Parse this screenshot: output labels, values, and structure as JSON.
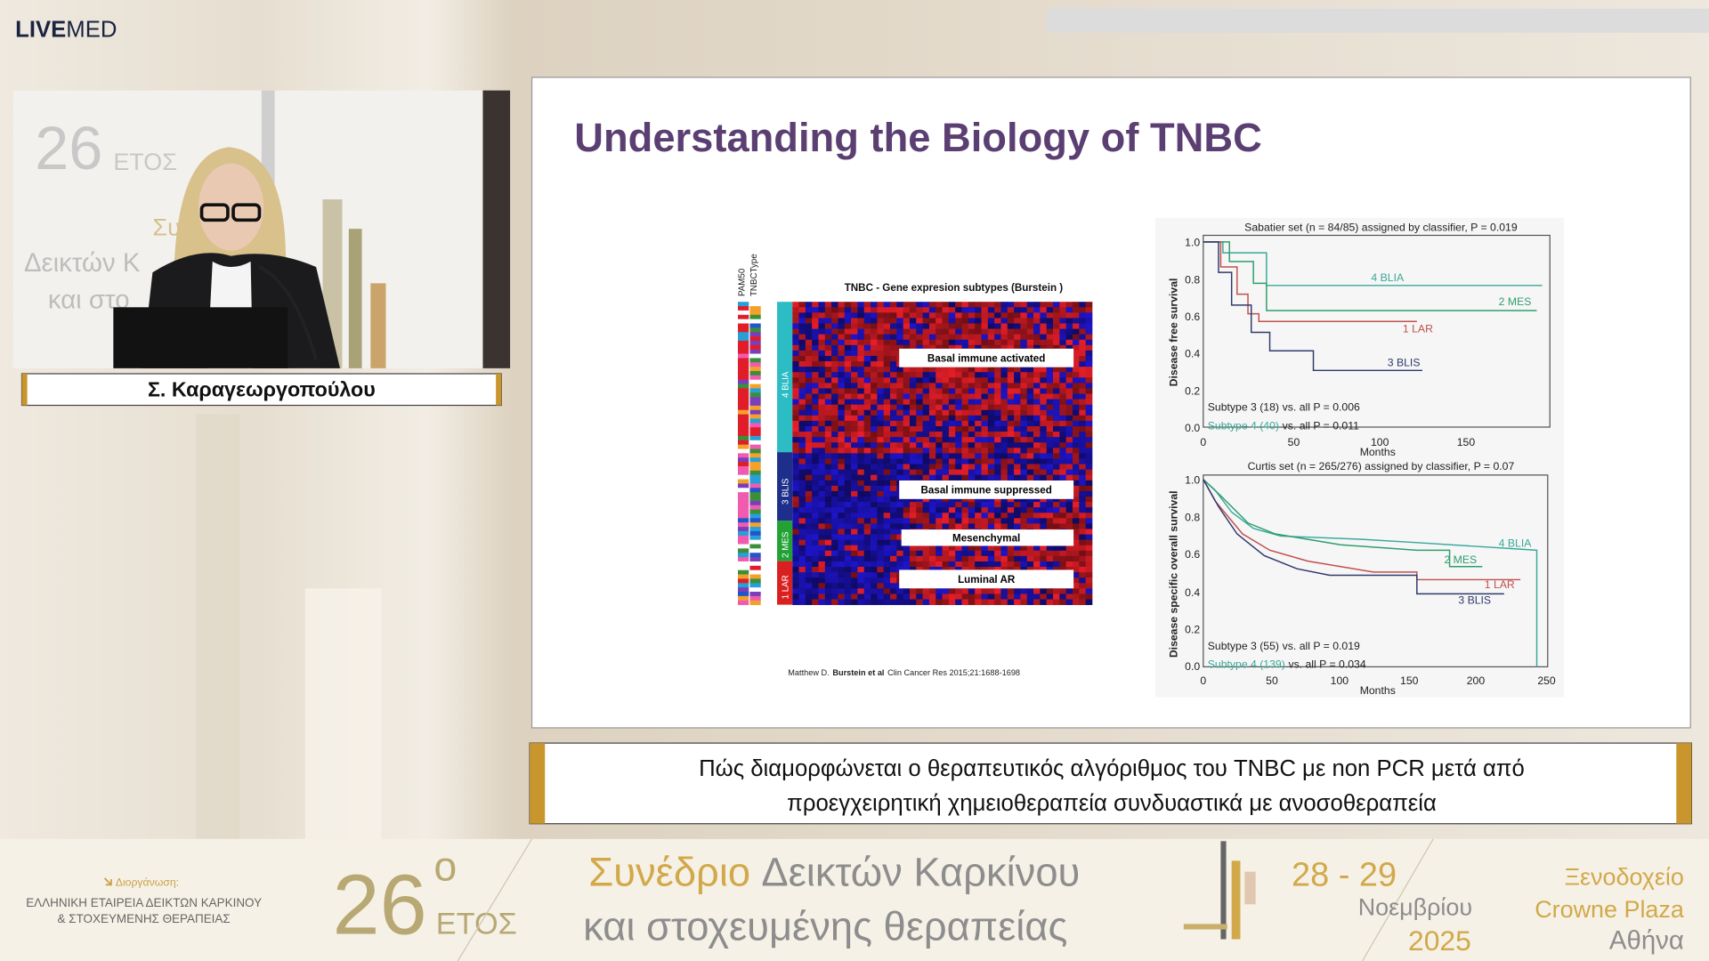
{
  "header": {
    "logo_bold": "LIVE",
    "logo_light": "MED"
  },
  "video": {
    "backdrop_text": [
      "26",
      "ΕΤΟΣ",
      "Συ",
      "Δεικτών Κ",
      "και στο"
    ]
  },
  "speaker": {
    "name": "Σ. Καραγεωργοπούλου"
  },
  "slide": {
    "title": "Understanding the Biology of TNBC",
    "heatmap": {
      "title": "TNBC - Gene expresion subtypes (Burstein )",
      "column_labels": [
        "PAM50",
        "TNBCType"
      ],
      "subtypes": [
        "4 BLIA",
        "3 BLIS",
        "2 MES",
        "1 LAR"
      ],
      "boxes": [
        "Basal immune activated",
        "Basal immune suppressed",
        "Mesenchymal",
        "Luminal AR"
      ]
    },
    "citation": {
      "author": "Matthew D.",
      "bold": "Burstein et al",
      "source": "Clin Cancer Res 2015;21:1688-1698"
    },
    "km_plots": [
      {
        "title": "Sabatier set (n = 84/85) assigned by classifier, P = 0.019",
        "ylabel": "Disease free survival",
        "yticks": [
          "1.0",
          "0.8",
          "0.6",
          "0.4",
          "0.2",
          "0.0"
        ],
        "xticks": [
          "0",
          "50",
          "100",
          "150"
        ],
        "xlabel": "Months",
        "curve_labels": [
          "4 BLIA",
          "2 MES",
          "1 LAR",
          "3 BLIS"
        ],
        "stats": [
          {
            "label": "Subtype 3 (18)",
            "text": "vs. all P = 0.006"
          },
          {
            "label": "Subtype 4 (40)",
            "text": "vs. all P = 0.011"
          }
        ]
      },
      {
        "title": "Curtis set (n = 265/276) assigned by classifier, P = 0.07",
        "ylabel": "Disease specific overall survival",
        "yticks": [
          "1.0",
          "0.8",
          "0.6",
          "0.4",
          "0.2",
          "0.0"
        ],
        "xticks": [
          "0",
          "50",
          "100",
          "150",
          "200",
          "250"
        ],
        "xlabel": "Months",
        "curve_labels": [
          "4 BLIA",
          "2 MES",
          "1 LAR",
          "3 BLIS"
        ],
        "stats": [
          {
            "label": "Subtype 3 (55)",
            "text": "vs. all P = 0.019"
          },
          {
            "label": "Subtype 4 (139)",
            "text": "vs. all P = 0.034"
          }
        ]
      }
    ]
  },
  "caption": {
    "lines": [
      "Πώς διαμορφώνεται ο θεραπευτικός αλγόριθμος του TNBC με non PCR μετά από",
      "προεγχειρητική χημειοθεραπεία συνδυαστικά με ανοσοθεραπεία"
    ]
  },
  "banner": {
    "organizer_label": "Διοργάνωση:",
    "organizer": [
      "ΕΛΛΗΝΙΚΗ ΕΤΑΙΡΕΙΑ ΔΕΙΚΤΩΝ ΚΑΡΚΙΝΟΥ",
      "& ΣΤΟΧΕΥΜΕΝΗΣ ΘΕΡΑΠΕΙΑΣ"
    ],
    "edition": "26",
    "edition_sup": "o",
    "edition_word": "ΕΤΟΣ",
    "congress_gold": "Συνέδριο",
    "congress_rest": "Δεικτών Καρκίνου",
    "congress_line2": "και στοχευμένης θεραπείας",
    "dates": "28 - 29",
    "month": "Νοεμβρίου",
    "year": "2025",
    "venue": [
      "Ξενοδοχείο",
      "Crowne Plaza"
    ],
    "city": "Αθήνα"
  }
}
